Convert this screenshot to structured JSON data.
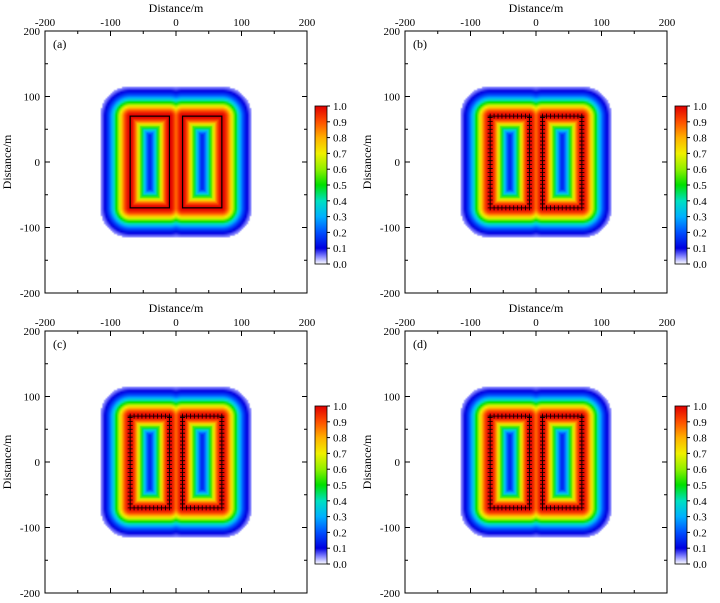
{
  "figure": {
    "xlabel": "Distance/m",
    "ylabel": "Distance/m"
  },
  "chart_data": [
    {
      "type": "heatmap",
      "panel_label": "(a)",
      "xlabel": "Distance/m",
      "ylabel": "Distance/m",
      "xlim": [
        -200,
        200
      ],
      "ylim": [
        -200,
        200
      ],
      "xticks": [
        -200,
        -100,
        0,
        100,
        200
      ],
      "yticks": [
        -200,
        -100,
        0,
        100,
        200
      ],
      "colorbar": {
        "min": 0.0,
        "max": 1.0,
        "ticks": [
          "0.0",
          "0.1",
          "0.2",
          "0.3",
          "0.4",
          "0.5",
          "0.6",
          "0.7",
          "0.8",
          "0.9",
          "1.0"
        ]
      },
      "sources": [
        {
          "x": [
            -70,
            -10
          ],
          "y": [
            -70,
            70
          ]
        },
        {
          "x": [
            10,
            70
          ],
          "y": [
            -70,
            70
          ]
        }
      ],
      "markers": "none",
      "true_model_outline": true
    },
    {
      "type": "heatmap",
      "panel_label": "(b)",
      "xlabel": "Distance/m",
      "ylabel": "Distance/m",
      "xlim": [
        -200,
        200
      ],
      "ylim": [
        -200,
        200
      ],
      "xticks": [
        -200,
        -100,
        0,
        100,
        200
      ],
      "yticks": [
        -200,
        -100,
        0,
        100,
        200
      ],
      "colorbar": {
        "min": 0.0,
        "max": 1.0,
        "ticks": [
          "0.0",
          "0.1",
          "0.2",
          "0.3",
          "0.4",
          "0.5",
          "0.6",
          "0.7",
          "0.8",
          "0.9",
          "1.0"
        ]
      },
      "sources": [
        {
          "x": [
            -70,
            -10
          ],
          "y": [
            -70,
            70
          ]
        },
        {
          "x": [
            10,
            70
          ],
          "y": [
            -70,
            70
          ]
        }
      ],
      "markers": "edge-plus",
      "true_model_outline": false
    },
    {
      "type": "heatmap",
      "panel_label": "(c)",
      "xlabel": "Distance/m",
      "ylabel": "Distance/m",
      "xlim": [
        -200,
        200
      ],
      "ylim": [
        -200,
        200
      ],
      "xticks": [
        -200,
        -100,
        0,
        100,
        200
      ],
      "yticks": [
        -200,
        -100,
        0,
        100,
        200
      ],
      "colorbar": {
        "min": 0.0,
        "max": 1.0,
        "ticks": [
          "0.0",
          "0.1",
          "0.2",
          "0.3",
          "0.4",
          "0.5",
          "0.6",
          "0.7",
          "0.8",
          "0.9",
          "1.0"
        ]
      },
      "sources": [
        {
          "x": [
            -70,
            -10
          ],
          "y": [
            -70,
            70
          ]
        },
        {
          "x": [
            10,
            70
          ],
          "y": [
            -70,
            70
          ]
        }
      ],
      "markers": "edge-plus",
      "true_model_outline": false
    },
    {
      "type": "heatmap",
      "panel_label": "(d)",
      "xlabel": "Distance/m",
      "ylabel": "Distance/m",
      "xlim": [
        -200,
        200
      ],
      "ylim": [
        -200,
        200
      ],
      "xticks": [
        -200,
        -100,
        0,
        100,
        200
      ],
      "yticks": [
        -200,
        -100,
        0,
        100,
        200
      ],
      "colorbar": {
        "min": 0.0,
        "max": 1.0,
        "ticks": [
          "0.0",
          "0.1",
          "0.2",
          "0.3",
          "0.4",
          "0.5",
          "0.6",
          "0.7",
          "0.8",
          "0.9",
          "1.0"
        ]
      },
      "sources": [
        {
          "x": [
            -70,
            -10
          ],
          "y": [
            -70,
            70
          ]
        },
        {
          "x": [
            10,
            70
          ],
          "y": [
            -70,
            70
          ]
        }
      ],
      "markers": "edge-plus",
      "true_model_outline": false
    }
  ]
}
